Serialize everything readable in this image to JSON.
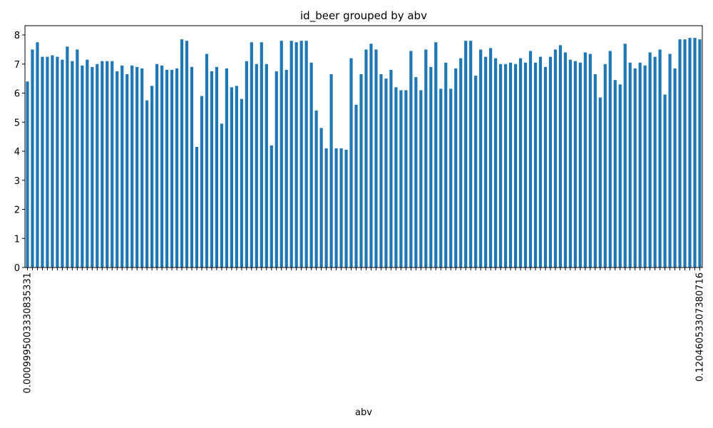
{
  "chart_data": {
    "type": "bar",
    "title": "id_beer grouped by abv",
    "x_label": "abv",
    "color": "#1f77b4",
    "values": [
      6.4,
      7.5,
      7.75,
      7.25,
      7.25,
      7.3,
      7.25,
      7.15,
      7.6,
      7.1,
      7.5,
      6.95,
      7.15,
      6.9,
      7.0,
      7.1,
      7.1,
      7.1,
      6.75,
      6.95,
      6.65,
      6.95,
      6.9,
      6.85,
      5.75,
      6.25,
      7.0,
      6.95,
      6.8,
      6.8,
      6.85,
      7.85,
      7.8,
      6.9,
      4.15,
      5.9,
      7.35,
      6.75,
      6.9,
      4.95,
      6.85,
      6.2,
      6.25,
      5.8,
      7.1,
      7.75,
      7.0,
      7.75,
      7.0,
      4.2,
      6.75,
      7.8,
      6.8,
      7.8,
      7.75,
      7.8,
      7.8,
      7.05,
      5.4,
      4.8,
      4.1,
      6.65,
      4.1,
      4.1,
      4.05,
      7.2,
      5.6,
      6.65,
      7.5,
      7.7,
      7.5,
      6.65,
      6.5,
      6.8,
      6.2,
      6.1,
      6.1,
      7.45,
      6.55,
      6.1,
      7.5,
      6.9,
      7.75,
      6.15,
      7.05,
      6.15,
      6.85,
      7.2,
      7.8,
      7.8,
      6.6,
      7.5,
      7.25,
      7.55,
      7.2,
      7.0,
      7.0,
      7.05,
      7.0,
      7.2,
      7.05,
      7.45,
      7.05,
      7.25,
      6.9,
      7.25,
      7.5,
      7.65,
      7.4,
      7.15,
      7.1,
      7.05,
      7.4,
      7.35,
      6.65,
      5.85,
      7.0,
      7.45,
      6.45,
      6.3,
      7.7,
      7.05,
      6.85,
      7.05,
      6.95,
      7.4,
      7.25,
      7.5,
      5.95,
      7.35,
      6.85,
      7.85,
      7.85,
      7.9,
      7.9,
      7.85
    ],
    "first_category": "0.0009995003330835331",
    "last_category": "0.12046053307380716",
    "ylim": [
      0,
      8.32
    ],
    "yticks": [
      0,
      1,
      2,
      3,
      4,
      5,
      6,
      7,
      8
    ]
  }
}
